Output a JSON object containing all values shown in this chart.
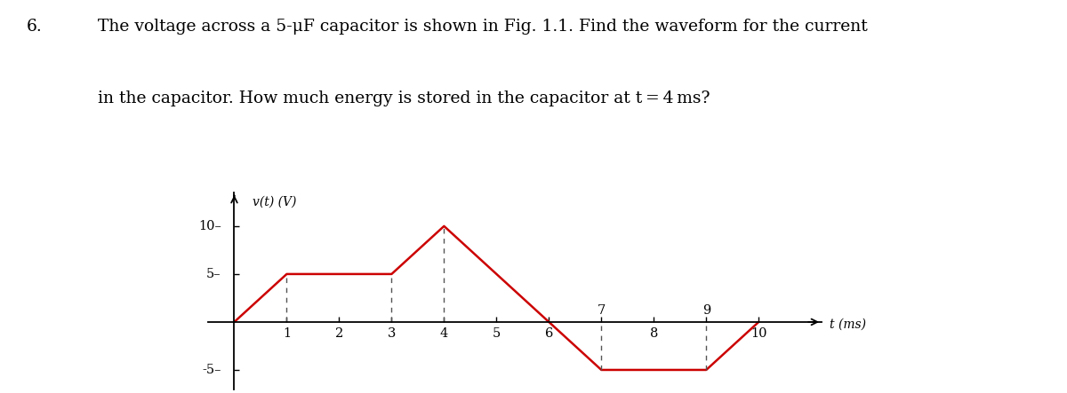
{
  "problem_number": "6.",
  "title_line1": "The voltage across a 5-μF capacitor is shown in Fig. 1.1. Find the waveform for the current",
  "title_line2": "in the capacitor. How much energy is stored in the capacitor at t = 4 ms?",
  "xlabel": "t (ms)",
  "ylabel": "v(t) (V)",
  "waveform_x": [
    0,
    1,
    3,
    4,
    6,
    7,
    9,
    10
  ],
  "waveform_y": [
    0,
    5,
    5,
    10,
    0,
    -5,
    -5,
    0
  ],
  "dashed_x": [
    1,
    3,
    4,
    7,
    9
  ],
  "dashed_y_top": [
    5,
    5,
    10,
    0,
    0
  ],
  "dashed_y_bottom": [
    0,
    0,
    0,
    -5,
    -5
  ],
  "xticks_below": [
    1,
    2,
    3,
    4,
    5,
    6,
    8,
    10
  ],
  "xticks_above": [
    7,
    9
  ],
  "ytick_vals": [
    -5,
    5,
    10
  ],
  "xlim": [
    -0.5,
    11.2
  ],
  "ylim": [
    -7.0,
    13.5
  ],
  "waveform_color": "#cc0000",
  "dashed_color": "#555555",
  "axis_color": "#000000",
  "background_color": "#ffffff",
  "line_width": 1.8,
  "dashed_linewidth": 1.0,
  "title_fontsize": 13.5,
  "label_fontsize": 10,
  "tick_fontsize": 10.5,
  "number_fontsize": 13.5
}
